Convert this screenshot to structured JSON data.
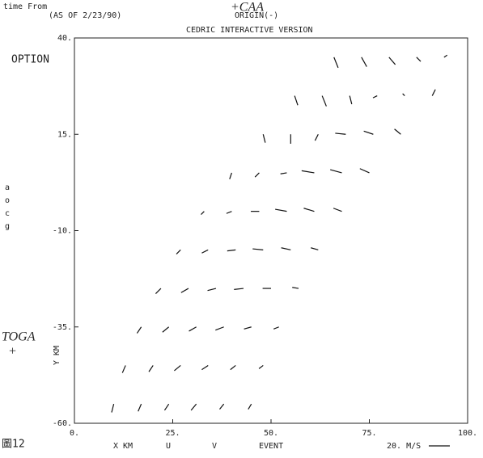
{
  "chart_data": {
    "type": "quiver",
    "header": [
      "time From",
      "(AS OF 2/23/90)",
      "ORIGIN(-)",
      "CEDRIC INTERACTIVE VERSION"
    ],
    "annotation_top": "+CAA",
    "option_label": "OPTION",
    "side_letters": [
      "a",
      "o",
      "c",
      "g"
    ],
    "annotation_left": [
      "TOGA",
      "+"
    ],
    "figure_label": "圖12",
    "xlabel": "X KM",
    "ylabel": "Y KM",
    "footer": [
      "U",
      "V",
      "EVENT"
    ],
    "scale_label": "20. M/S",
    "scale_value": 20,
    "xlim": [
      0,
      100
    ],
    "ylim": [
      -60,
      40
    ],
    "xticks": [
      {
        "value": 0,
        "label": "0."
      },
      {
        "value": 25,
        "label": "25."
      },
      {
        "value": 50,
        "label": "50."
      },
      {
        "value": 75,
        "label": "75."
      },
      {
        "value": 100,
        "label": "100."
      }
    ],
    "yticks": [
      {
        "value": -60,
        "label": "-60."
      },
      {
        "value": -35,
        "label": "-35."
      },
      {
        "value": -10,
        "label": "-10."
      },
      {
        "value": 15,
        "label": "15."
      },
      {
        "value": 40,
        "label": "40."
      }
    ],
    "color": "#111",
    "vectors": {
      "x": [
        10,
        17,
        24,
        31,
        38,
        45,
        13,
        20,
        27,
        34,
        41,
        48,
        17,
        24,
        31,
        38,
        45,
        52,
        22,
        29,
        36,
        43,
        50,
        57,
        27,
        34,
        41,
        48,
        55,
        62,
        33,
        40,
        47,
        54,
        61,
        68,
        40,
        47,
        54,
        61,
        68,
        75,
        48,
        55,
        62,
        69,
        76,
        83,
        56,
        63,
        70,
        77,
        84,
        91,
        66,
        73,
        80,
        87,
        94
      ],
      "y": [
        -55,
        -55,
        -55,
        -55,
        -55,
        -55,
        -45,
        -45,
        -45,
        -45,
        -45,
        -45,
        -35,
        -35,
        -35,
        -35,
        -35,
        -35,
        -25,
        -25,
        -25,
        -25,
        -25,
        -25,
        -15,
        -15,
        -15,
        -15,
        -15,
        -15,
        -5,
        -5,
        -5,
        -5,
        -5,
        -5,
        5,
        5,
        5,
        5,
        5,
        5,
        15,
        15,
        15,
        15,
        15,
        15,
        25,
        25,
        25,
        25,
        25,
        25,
        35,
        35,
        35,
        35,
        35
      ],
      "u": [
        -2,
        -3,
        -4,
        -5,
        -4,
        -3,
        -3,
        -4,
        -6,
        -6,
        -5,
        -4,
        -4,
        -6,
        -7,
        -8,
        -7,
        -5,
        -5,
        -7,
        -8,
        -9,
        -8,
        -6,
        -4,
        -6,
        -8,
        -10,
        -9,
        -7,
        -3,
        -5,
        -8,
        -11,
        -10,
        -8,
        -2,
        -4,
        -6,
        -12,
        -11,
        -9,
        2,
        0,
        -3,
        -10,
        -9,
        -6,
        3,
        4,
        2,
        -4,
        -2,
        3,
        4,
        5,
        6,
        4,
        3
      ],
      "v": [
        -8,
        -7,
        -6,
        -6,
        -5,
        -5,
        -7,
        -6,
        -5,
        -4,
        -4,
        -3,
        -6,
        -5,
        -4,
        -3,
        -2,
        -2,
        -5,
        -4,
        -2,
        -1,
        0,
        1,
        -4,
        -3,
        -1,
        1,
        2,
        2,
        -3,
        -2,
        0,
        2,
        3,
        3,
        -6,
        -4,
        -1,
        2,
        3,
        4,
        -8,
        -9,
        -6,
        1,
        3,
        5,
        -9,
        -10,
        -8,
        -2,
        2,
        6,
        -10,
        -9,
        -7,
        -4,
        2
      ]
    }
  }
}
